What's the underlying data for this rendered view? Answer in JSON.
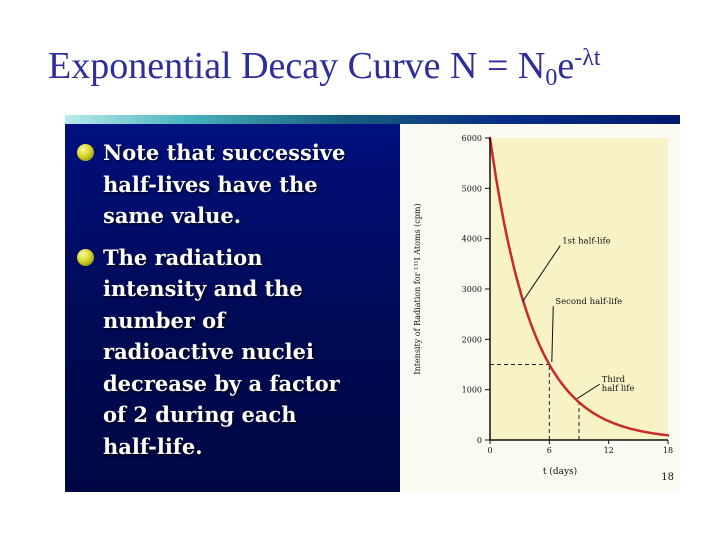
{
  "slide": {
    "title": {
      "prefix": "Exponential Decay Curve N = N",
      "subscript": "0",
      "mid": "e",
      "superscript": "-λt"
    },
    "page_number": "18"
  },
  "bullets": [
    {
      "text": "Note that successive half-lives have the same value."
    },
    {
      "text": "The radiation intensity and the number of radioactive nuclei decrease by a factor of 2 during each half-life."
    }
  ],
  "colors": {
    "title_blue": "#2d2d9c",
    "panel_blue": "#000a55",
    "accent_teal": "#49b2bb",
    "bullet_yellow": "#d6d62a",
    "plot_background": "#f7f3c6",
    "curve_red": "#c92a2a"
  },
  "chart_data": {
    "type": "line",
    "title": "",
    "xlabel": "t (days)",
    "ylabel": "Intensity of Radiation for ¹³¹I Atoms (cpm)",
    "xlim": [
      0,
      18
    ],
    "ylim": [
      0,
      6000
    ],
    "xticks": [
      0,
      6,
      12,
      18
    ],
    "yticks": [
      6000,
      5000,
      4000,
      3000,
      2000,
      1000,
      0
    ],
    "grid": false,
    "curve": {
      "N0": 6000,
      "half_life_days": 3,
      "color": "#c92a2a"
    },
    "dashed_guides": [
      {
        "x1": 0,
        "y1": 1500,
        "x2": 6,
        "y2": 1500
      },
      {
        "x1": 6,
        "y1": 0,
        "x2": 6,
        "y2": 1500
      },
      {
        "x1": 9,
        "y1": 0,
        "x2": 9,
        "y2": 750
      }
    ],
    "annotations": [
      {
        "lines": [
          "1st half-life"
        ],
        "label_at": [
          7.3,
          3900
        ],
        "target": [
          3.3,
          2750
        ]
      },
      {
        "lines": [
          "Second half-life"
        ],
        "label_at": [
          6.6,
          2700
        ],
        "target": [
          6.25,
          1550
        ]
      },
      {
        "lines": [
          "Third",
          "half life"
        ],
        "label_at": [
          11.3,
          1150
        ],
        "target": [
          8.8,
          820
        ]
      }
    ]
  }
}
